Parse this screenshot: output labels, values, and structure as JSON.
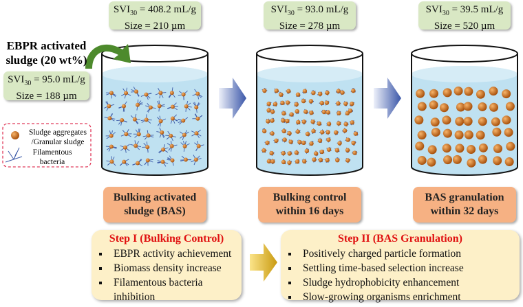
{
  "input": {
    "title": "EBPR activated sludge (20 wt%)",
    "svi_prefix": "SVI",
    "svi_sub": "30",
    "svi_value": " = 95.0 mL/g",
    "size": "Size = 188 µm"
  },
  "legend": {
    "aggregates": "Sludge aggregates /Granular sludge",
    "filaments": "Filamentous bacteria",
    "border_color": "#e03a5a"
  },
  "stages": [
    {
      "svi_prefix": "SVI",
      "svi_sub": "30",
      "svi_value": " = 408.2 mL/g",
      "size": "Size = 210 µm",
      "label1": "Bulking activated",
      "label2": "sludge (BAS)"
    },
    {
      "svi_prefix": "SVI",
      "svi_sub": "30",
      "svi_value": " = 93.0 mL/g",
      "size": "Size = 278 µm",
      "label1": "Bulking control",
      "label2": "within 16 days"
    },
    {
      "svi_prefix": "SVI",
      "svi_sub": "30",
      "svi_value": " = 39.5 mL/g",
      "size": "Size = 520 µm",
      "label1": "BAS granulation",
      "label2": "within 32 days"
    }
  ],
  "steps": [
    {
      "title": "Step I (Bulking Control)",
      "items": [
        "EBPR activity achievement",
        "Biomass density increase",
        "Filamentous bacteria inhibition"
      ]
    },
    {
      "title": "Step II (BAS Granulation)",
      "items": [
        "Positively charged particle formation",
        "Settling time-based selection increase",
        "Sludge hydrophobicity enhancement",
        "Slow-growing organisms enrichment"
      ]
    }
  ],
  "colors": {
    "water": "#bfe1f1",
    "green_box": "#d9e8c4",
    "orange_box": "#f6b183",
    "step_box": "#fdf0c8",
    "step_title": "#e01010",
    "particle": "#e07a1a",
    "filament": "#3c5aa8",
    "arrow_blue": "#3a56a8",
    "arrow_gold": "#c99a10"
  }
}
